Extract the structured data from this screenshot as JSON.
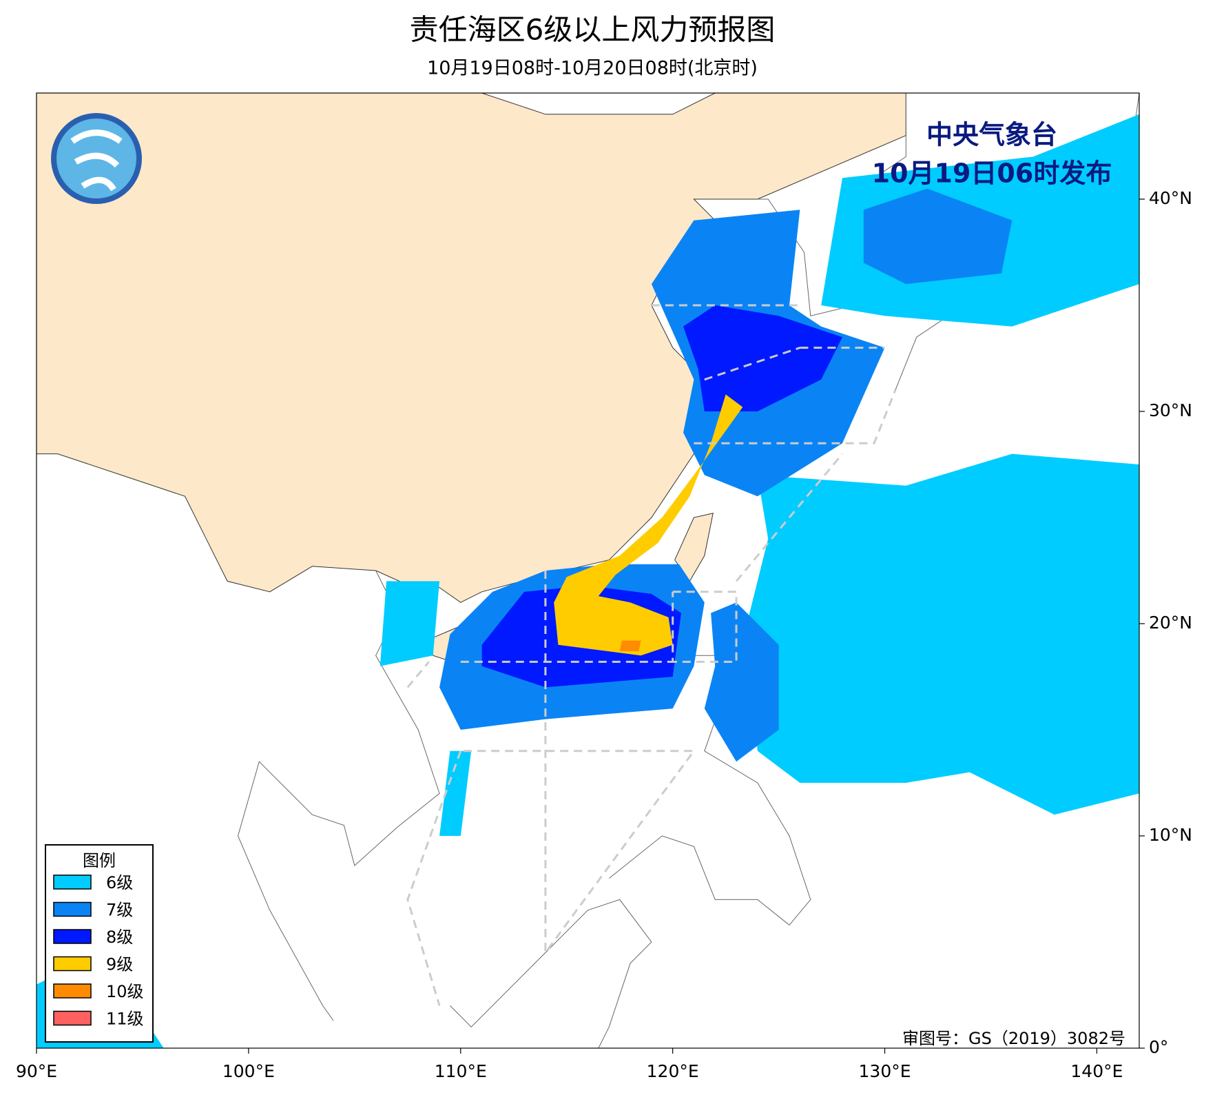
{
  "header": {
    "title": "责任海区6级以上风力预报图",
    "subtitle": "10月19日08时-10月20日08时(北京时)"
  },
  "issuer": {
    "agency": "中央气象台",
    "issued": "10月19日06时发布"
  },
  "legend": {
    "title": "图例",
    "items": [
      {
        "name": "6级",
        "color": "#00ccff"
      },
      {
        "name": "7级",
        "color": "#0a84f5"
      },
      {
        "name": "8级",
        "color": "#0019ff"
      },
      {
        "name": "9级",
        "color": "#ffcc00"
      },
      {
        "name": "10级",
        "color": "#ff8c00"
      },
      {
        "name": "11级",
        "color": "#ff6060"
      }
    ]
  },
  "map_axes": {
    "xlim": [
      90,
      142
    ],
    "ylim": [
      0,
      45
    ],
    "xticks": [
      {
        "value": 90,
        "label": "90°E"
      },
      {
        "value": 100,
        "label": "100°E"
      },
      {
        "value": 110,
        "label": "110°E"
      },
      {
        "value": 120,
        "label": "120°E"
      },
      {
        "value": 130,
        "label": "130°E"
      },
      {
        "value": 140,
        "label": "140°E"
      }
    ],
    "yticks": [
      {
        "value": 0,
        "label": "0°"
      },
      {
        "value": 10,
        "label": "10°N"
      },
      {
        "value": 20,
        "label": "20°N"
      },
      {
        "value": 30,
        "label": "30°N"
      },
      {
        "value": 40,
        "label": "40°N"
      }
    ]
  },
  "footer": {
    "review_number": "审图号：GS（2019）3082号"
  }
}
